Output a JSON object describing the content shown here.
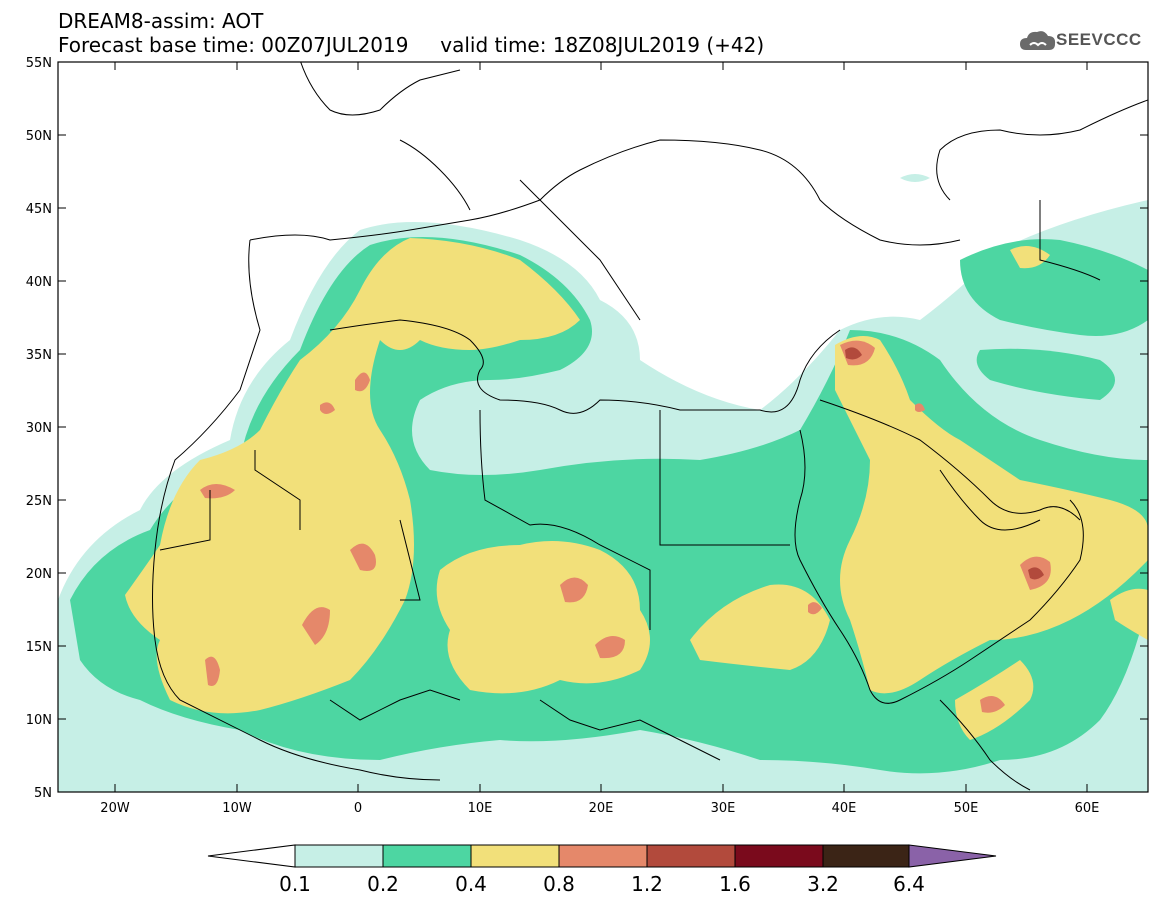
{
  "title_line1": "DREAM8-assim: AOT",
  "title_line2_base": "Forecast base time: 00Z07JUL2019",
  "title_line2_valid": "valid time: 18Z08JUL2019 (+42)",
  "logo_text": "SEEVCCC",
  "logo_icon": "cloud-icon",
  "lat_labels": [
    "55N",
    "50N",
    "45N",
    "40N",
    "35N",
    "30N",
    "25N",
    "20N",
    "15N",
    "10N",
    "5N"
  ],
  "lon_labels": [
    "20W",
    "10W",
    "0",
    "10E",
    "20E",
    "30E",
    "40E",
    "50E",
    "60E"
  ],
  "colorbar": {
    "levels": [
      "0.1",
      "0.2",
      "0.4",
      "0.8",
      "1.2",
      "1.6",
      "3.2",
      "6.4"
    ],
    "colors": [
      "#c6efe6",
      "#4dd6a2",
      "#f2e07a",
      "#e5886a",
      "#b24a3c",
      "#7a0a1c",
      "#3b2416",
      "#8a62a8"
    ],
    "under_color": "#ffffff"
  },
  "colors": {
    "land_background": "#ffffff",
    "borders": "#000000"
  }
}
